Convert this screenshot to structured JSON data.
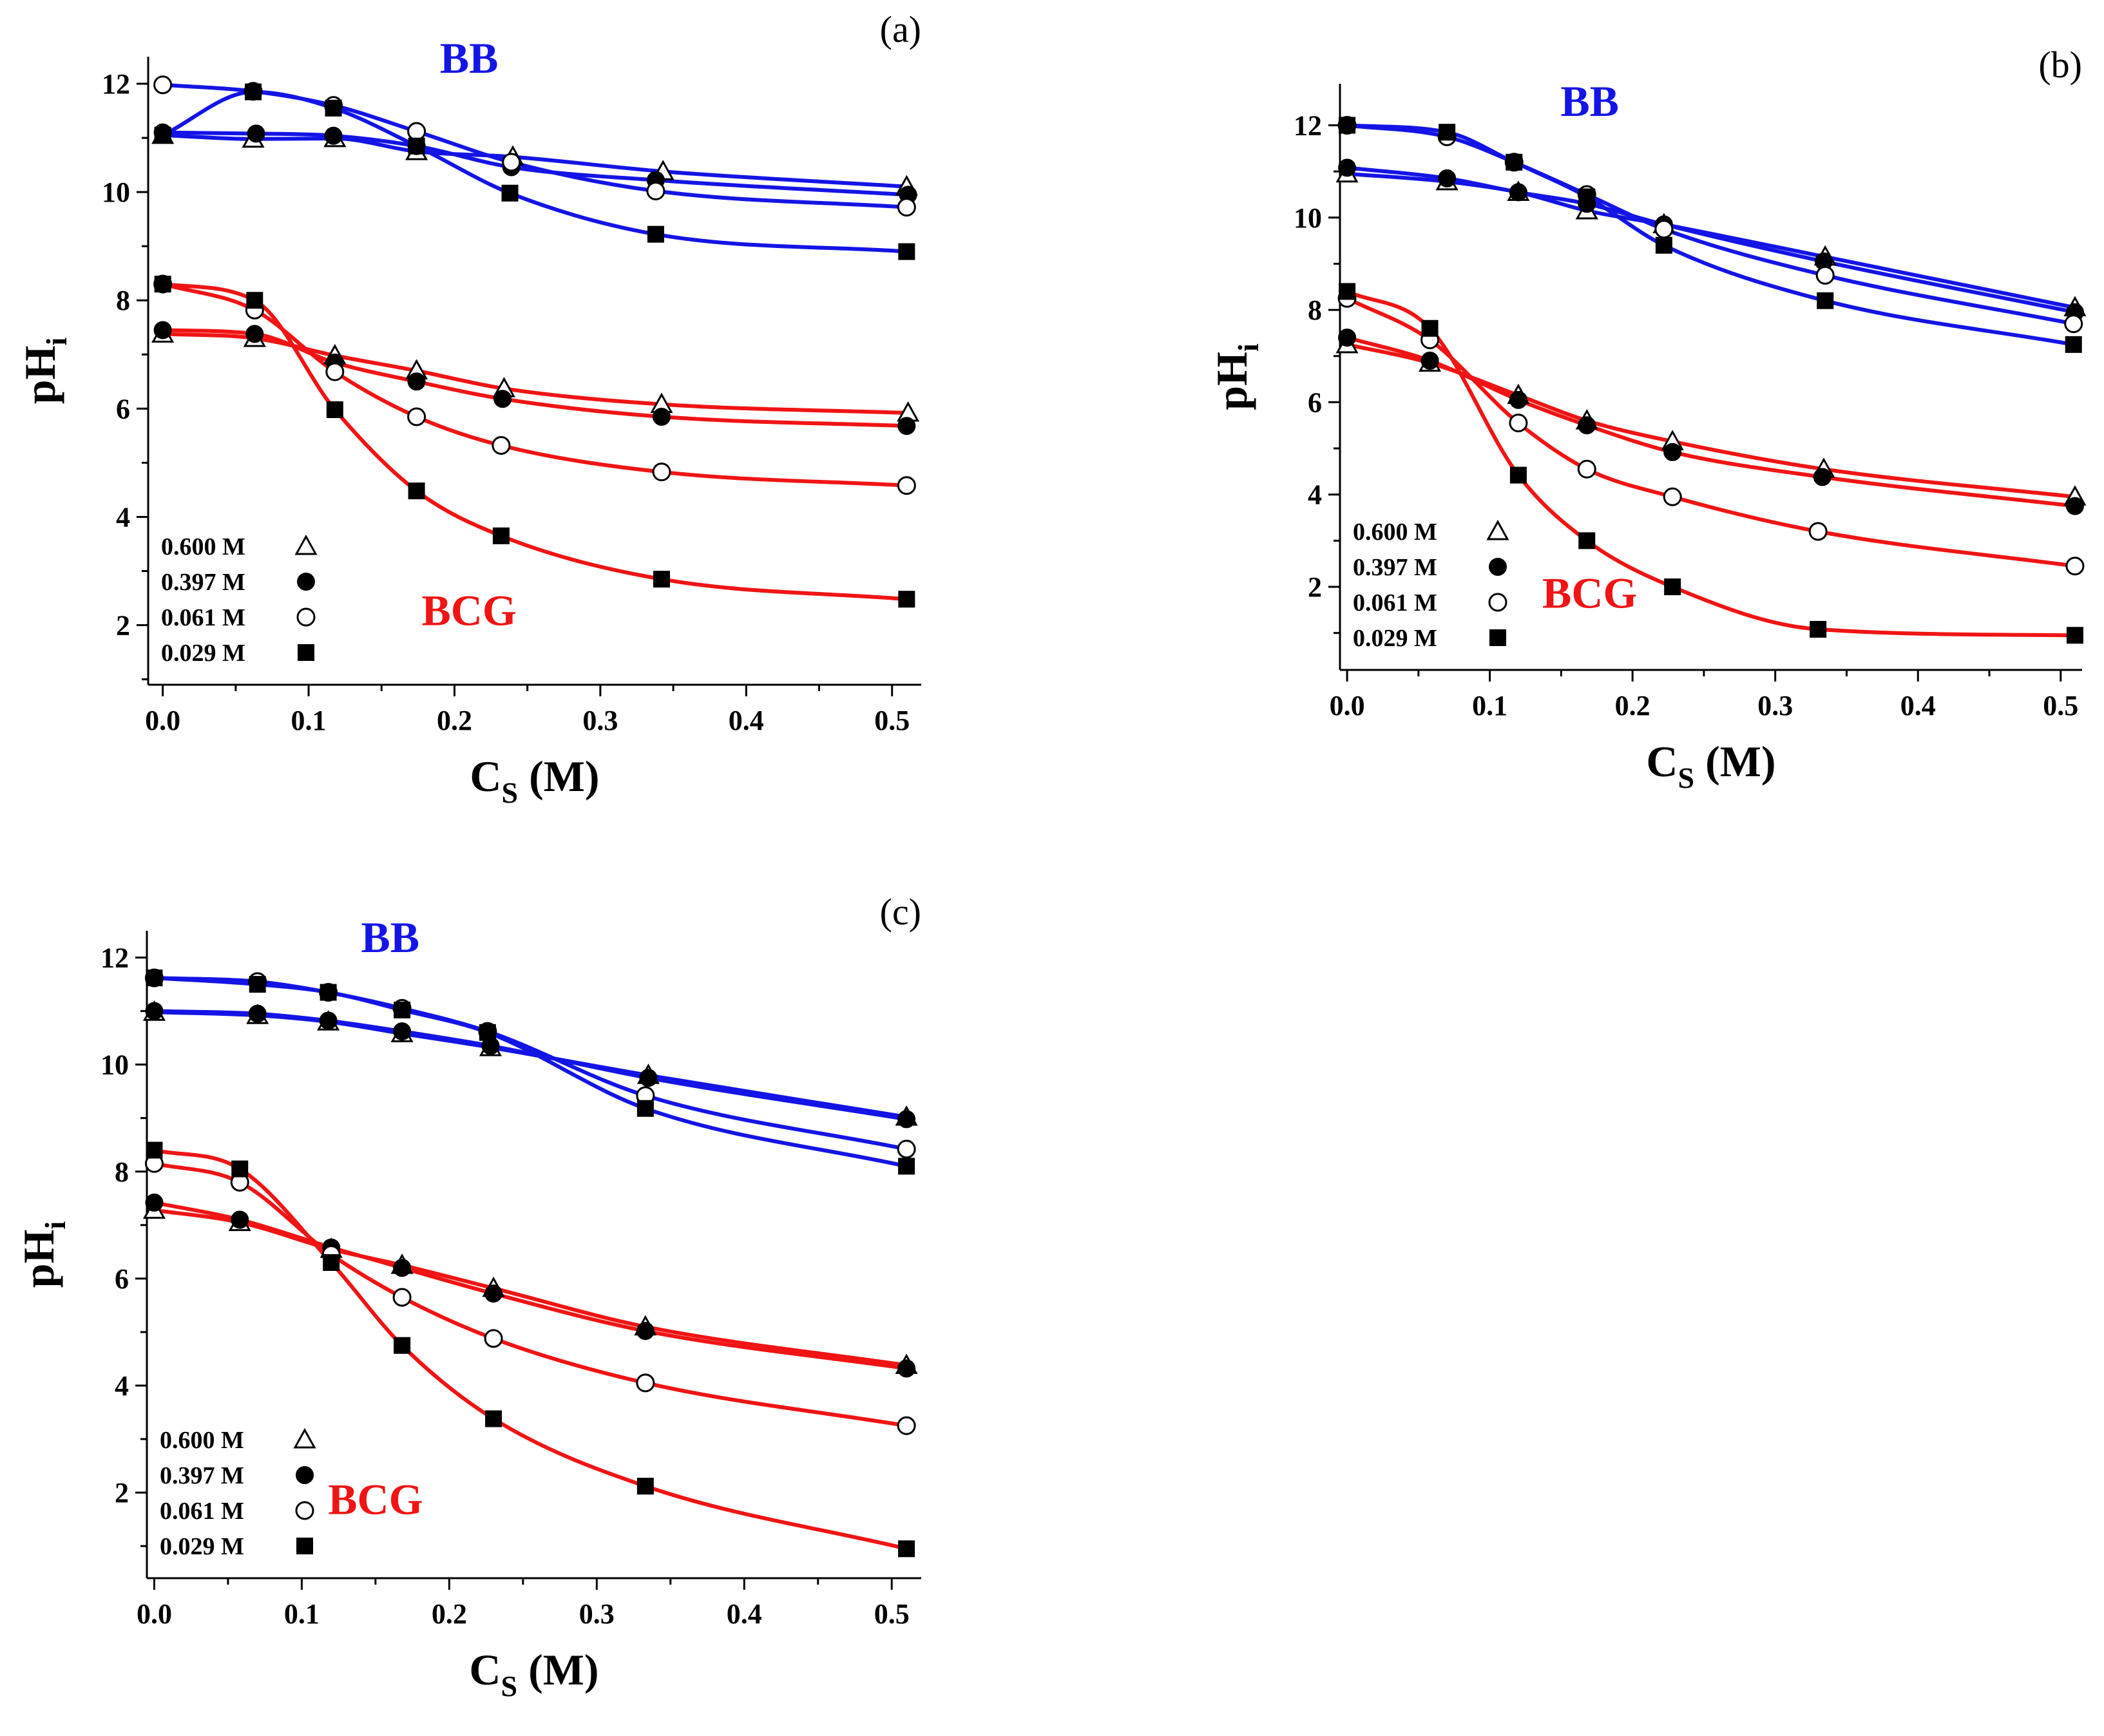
{
  "colors": {
    "BB": "#1414e6",
    "BCG": "#f01414",
    "axis": "#000000"
  },
  "chart_data": [
    {
      "type": "scatter",
      "panel_label": "(a)",
      "xlabel": "C",
      "xlabel_sub": "S",
      "xlabel_unit": " (M)",
      "ylabel": "pH",
      "ylabel_sub": "i",
      "xlim": [
        -0.01,
        0.52
      ],
      "ylim": [
        0.9,
        12.5
      ],
      "xticks": [
        0.0,
        0.1,
        0.2,
        0.3,
        0.4,
        0.5
      ],
      "xtick_labels": [
        "0.0",
        "0.1",
        "0.2",
        "0.3",
        "0.4",
        "0.5"
      ],
      "yticks": [
        2,
        4,
        6,
        8,
        10,
        12
      ],
      "ytick_labels": [
        "2",
        "4",
        "6",
        "8",
        "10",
        "12"
      ],
      "group_labels": [
        {
          "text": "BB",
          "color_key": "BB",
          "pos": [
            0.21,
            12.2
          ]
        },
        {
          "text": "BCG",
          "color_key": "BCG",
          "pos": [
            0.21,
            2.0
          ]
        }
      ],
      "legend": [
        {
          "label": "0.600 M",
          "marker": "triangle"
        },
        {
          "label": "0.397 M",
          "marker": "circle-filled"
        },
        {
          "label": "0.061 M",
          "marker": "circle-open"
        },
        {
          "label": "0.029 M",
          "marker": "square"
        }
      ],
      "series": [
        {
          "group": "BB",
          "marker": "triangle",
          "x": [
            0.0,
            0.062,
            0.118,
            0.174,
            0.24,
            0.343,
            0.51
          ],
          "y": [
            11.05,
            10.98,
            10.99,
            10.75,
            10.65,
            10.38,
            10.1
          ]
        },
        {
          "group": "BB",
          "marker": "circle-filled",
          "x": [
            0.0,
            0.064,
            0.117,
            0.174,
            0.239,
            0.338,
            0.511
          ],
          "y": [
            11.1,
            11.08,
            11.04,
            10.85,
            10.46,
            10.22,
            9.95
          ]
        },
        {
          "group": "BB",
          "marker": "circle-open",
          "x": [
            0.0,
            0.062,
            0.117,
            0.174,
            0.239,
            0.338,
            0.51
          ],
          "y": [
            11.98,
            11.86,
            11.6,
            11.12,
            10.55,
            10.02,
            9.72
          ]
        },
        {
          "group": "BB",
          "marker": "square",
          "x": [
            0.0,
            0.062,
            0.117,
            0.174,
            0.238,
            0.338,
            0.51
          ],
          "y": [
            11.05,
            11.85,
            11.55,
            10.85,
            9.98,
            9.22,
            8.9
          ]
        },
        {
          "group": "BCG",
          "marker": "triangle",
          "x": [
            0.0,
            0.063,
            0.118,
            0.174,
            0.234,
            0.342,
            0.511
          ],
          "y": [
            7.38,
            7.3,
            6.98,
            6.7,
            6.37,
            6.08,
            5.92
          ]
        },
        {
          "group": "BCG",
          "marker": "circle-filled",
          "x": [
            0.0,
            0.063,
            0.118,
            0.174,
            0.233,
            0.342,
            0.51
          ],
          "y": [
            7.45,
            7.38,
            6.85,
            6.5,
            6.18,
            5.85,
            5.68
          ]
        },
        {
          "group": "BCG",
          "marker": "circle-open",
          "x": [
            0.0,
            0.063,
            0.118,
            0.174,
            0.232,
            0.342,
            0.51
          ],
          "y": [
            8.3,
            7.82,
            6.68,
            5.85,
            5.32,
            4.83,
            4.58
          ]
        },
        {
          "group": "BCG",
          "marker": "square",
          "x": [
            0.0,
            0.063,
            0.118,
            0.174,
            0.232,
            0.342,
            0.51
          ],
          "y": [
            8.3,
            8.0,
            5.98,
            4.48,
            3.65,
            2.85,
            2.48
          ]
        }
      ]
    },
    {
      "type": "scatter",
      "panel_label": "(b)",
      "xlabel": "C",
      "xlabel_sub": "S",
      "xlabel_unit": " (M)",
      "ylabel": "pH",
      "ylabel_sub": "i",
      "xlim": [
        -0.005,
        0.515
      ],
      "ylim": [
        0.2,
        12.9
      ],
      "xticks": [
        0.0,
        0.1,
        0.2,
        0.3,
        0.4,
        0.5
      ],
      "xtick_labels": [
        "0.0",
        "0.1",
        "0.2",
        "0.3",
        "0.4",
        "0.5"
      ],
      "yticks": [
        2,
        4,
        6,
        8,
        10,
        12
      ],
      "ytick_labels": [
        "2",
        "4",
        "6",
        "8",
        "10",
        "12"
      ],
      "group_labels": [
        {
          "text": "BB",
          "color_key": "BB",
          "pos": [
            0.17,
            12.2
          ]
        },
        {
          "text": "BCG",
          "color_key": "BCG",
          "pos": [
            0.17,
            1.55
          ]
        }
      ],
      "legend": [
        {
          "label": "0.600 M",
          "marker": "triangle"
        },
        {
          "label": "0.397 M",
          "marker": "circle-filled"
        },
        {
          "label": "0.061 M",
          "marker": "circle-open"
        },
        {
          "label": "0.029 M",
          "marker": "square"
        }
      ],
      "series": [
        {
          "group": "BB",
          "marker": "triangle",
          "x": [
            0.0,
            0.07,
            0.12,
            0.168,
            0.222,
            0.335,
            0.51
          ],
          "y": [
            10.95,
            10.78,
            10.55,
            10.15,
            9.85,
            9.15,
            8.05
          ]
        },
        {
          "group": "BB",
          "marker": "circle-filled",
          "x": [
            0.0,
            0.07,
            0.12,
            0.168,
            0.222,
            0.334,
            0.51
          ],
          "y": [
            11.08,
            10.85,
            10.55,
            10.3,
            9.85,
            9.05,
            7.95
          ]
        },
        {
          "group": "BB",
          "marker": "circle-open",
          "x": [
            0.0,
            0.07,
            0.117,
            0.168,
            0.222,
            0.335,
            0.509
          ],
          "y": [
            12.0,
            11.75,
            11.2,
            10.5,
            9.75,
            8.75,
            7.7
          ]
        },
        {
          "group": "BB",
          "marker": "square",
          "x": [
            0.0,
            0.07,
            0.117,
            0.168,
            0.222,
            0.335,
            0.509
          ],
          "y": [
            12.0,
            11.85,
            11.2,
            10.45,
            9.4,
            8.2,
            7.25
          ]
        },
        {
          "group": "BCG",
          "marker": "triangle",
          "x": [
            0.0,
            0.058,
            0.12,
            0.168,
            0.228,
            0.334,
            0.51
          ],
          "y": [
            7.25,
            6.85,
            6.15,
            5.6,
            5.15,
            4.55,
            3.95
          ]
        },
        {
          "group": "BCG",
          "marker": "circle-filled",
          "x": [
            0.0,
            0.058,
            0.12,
            0.168,
            0.228,
            0.333,
            0.51
          ],
          "y": [
            7.4,
            6.9,
            6.05,
            5.5,
            4.92,
            4.38,
            3.75
          ]
        },
        {
          "group": "BCG",
          "marker": "circle-open",
          "x": [
            0.0,
            0.058,
            0.12,
            0.168,
            0.228,
            0.33,
            0.51
          ],
          "y": [
            8.25,
            7.35,
            5.55,
            4.55,
            3.95,
            3.2,
            2.45
          ]
        },
        {
          "group": "BCG",
          "marker": "square",
          "x": [
            0.0,
            0.058,
            0.12,
            0.168,
            0.228,
            0.33,
            0.51
          ],
          "y": [
            8.4,
            7.6,
            4.42,
            3.0,
            2.0,
            1.08,
            0.95
          ]
        }
      ]
    },
    {
      "type": "scatter",
      "panel_label": "(c)",
      "xlabel": "C",
      "xlabel_sub": "S",
      "xlabel_unit": " (M)",
      "ylabel": "pH",
      "ylabel_sub": "i",
      "xlim": [
        -0.005,
        0.52
      ],
      "ylim": [
        0.4,
        12.5
      ],
      "xticks": [
        0.0,
        0.1,
        0.2,
        0.3,
        0.4,
        0.5
      ],
      "xtick_labels": [
        "0.0",
        "0.1",
        "0.2",
        "0.3",
        "0.4",
        "0.5"
      ],
      "yticks": [
        2,
        4,
        6,
        8,
        10,
        12
      ],
      "ytick_labels": [
        "2",
        "4",
        "6",
        "8",
        "10",
        "12"
      ],
      "group_labels": [
        {
          "text": "BB",
          "color_key": "BB",
          "pos": [
            0.16,
            12.1
          ]
        },
        {
          "text": "BCG",
          "color_key": "BCG",
          "pos": [
            0.15,
            1.6
          ]
        }
      ],
      "legend": [
        {
          "label": "0.600 M",
          "marker": "triangle"
        },
        {
          "label": "0.397 M",
          "marker": "circle-filled"
        },
        {
          "label": "0.061 M",
          "marker": "circle-open"
        },
        {
          "label": "0.029 M",
          "marker": "square"
        }
      ],
      "series": [
        {
          "group": "BB",
          "marker": "triangle",
          "x": [
            0.0,
            0.07,
            0.118,
            0.168,
            0.228,
            0.335,
            0.51
          ],
          "y": [
            10.98,
            10.92,
            10.8,
            10.58,
            10.32,
            9.8,
            9.02
          ]
        },
        {
          "group": "BB",
          "marker": "circle-filled",
          "x": [
            0.0,
            0.07,
            0.118,
            0.168,
            0.228,
            0.335,
            0.51
          ],
          "y": [
            11.0,
            10.95,
            10.82,
            10.62,
            10.35,
            9.75,
            8.98
          ]
        },
        {
          "group": "BB",
          "marker": "circle-open",
          "x": [
            0.0,
            0.07,
            0.118,
            0.168,
            0.226,
            0.333,
            0.51
          ],
          "y": [
            11.62,
            11.55,
            11.35,
            11.05,
            10.62,
            9.42,
            8.42
          ]
        },
        {
          "group": "BB",
          "marker": "square",
          "x": [
            0.0,
            0.07,
            0.118,
            0.168,
            0.226,
            0.333,
            0.51
          ],
          "y": [
            11.62,
            11.5,
            11.35,
            11.02,
            10.6,
            9.18,
            8.1
          ]
        },
        {
          "group": "BCG",
          "marker": "triangle",
          "x": [
            0.0,
            0.058,
            0.12,
            0.168,
            0.23,
            0.333,
            0.51
          ],
          "y": [
            7.28,
            7.05,
            6.55,
            6.25,
            5.82,
            5.1,
            4.38
          ]
        },
        {
          "group": "BCG",
          "marker": "circle-filled",
          "x": [
            0.0,
            0.058,
            0.12,
            0.168,
            0.23,
            0.333,
            0.51
          ],
          "y": [
            7.42,
            7.1,
            6.58,
            6.2,
            5.72,
            5.02,
            4.32
          ]
        },
        {
          "group": "BCG",
          "marker": "circle-open",
          "x": [
            0.0,
            0.058,
            0.12,
            0.168,
            0.23,
            0.333,
            0.51
          ],
          "y": [
            8.15,
            7.8,
            6.45,
            5.65,
            4.88,
            4.05,
            3.25
          ]
        },
        {
          "group": "BCG",
          "marker": "square",
          "x": [
            0.0,
            0.058,
            0.12,
            0.168,
            0.23,
            0.333,
            0.51
          ],
          "y": [
            8.4,
            8.05,
            6.3,
            4.75,
            3.38,
            2.12,
            0.95
          ]
        }
      ]
    }
  ]
}
